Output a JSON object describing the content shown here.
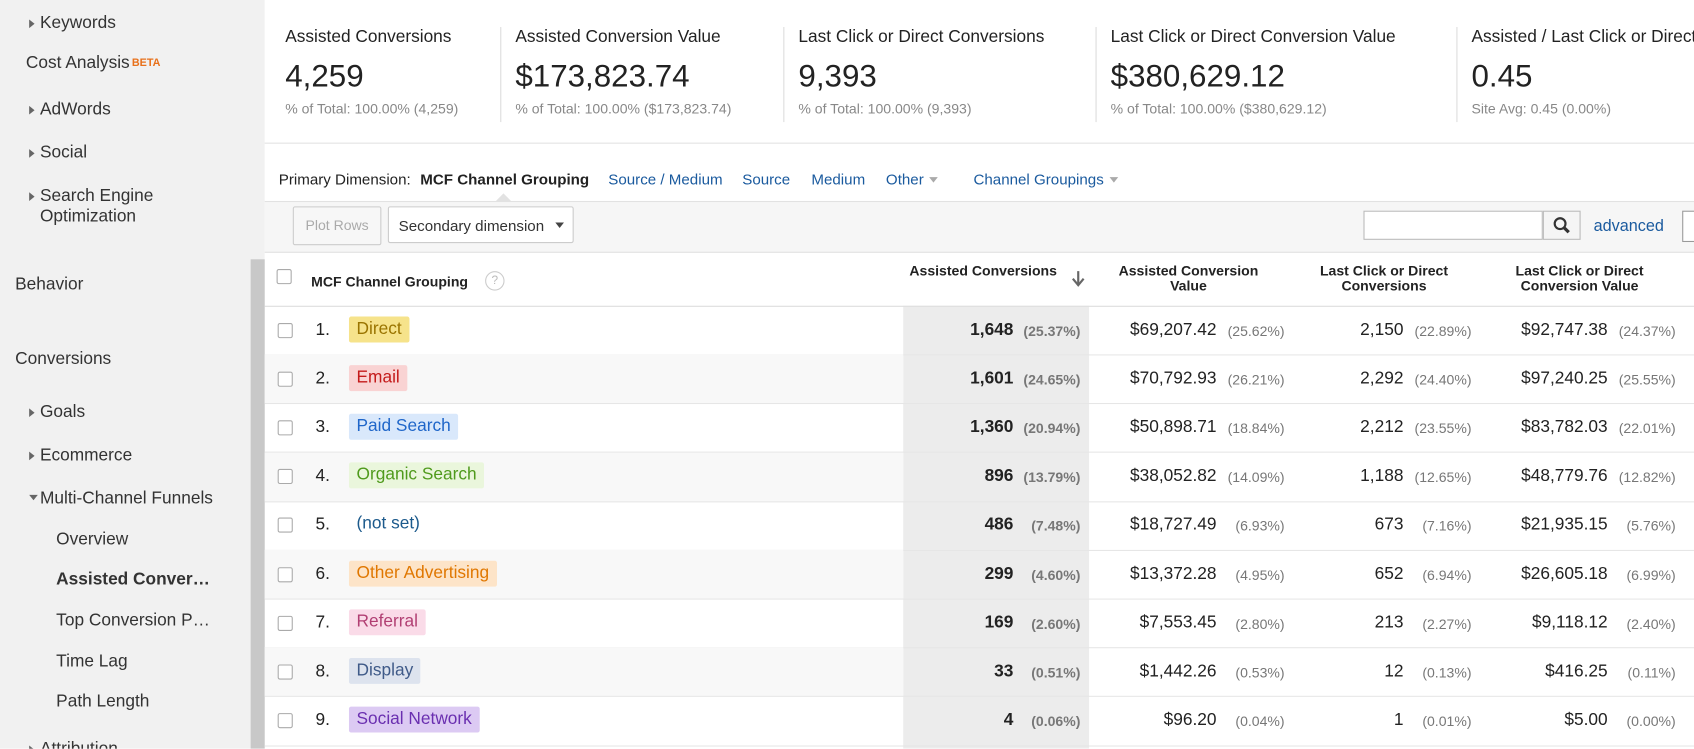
{
  "sidebar": {
    "items": [
      "Keywords",
      "Cost Analysis",
      "AdWords",
      "Social",
      "Search Engine Optimization",
      "Behavior",
      "Conversions",
      "Goals",
      "Ecommerce",
      "Multi-Channel Funnels",
      "Overview",
      "Assisted Conver…",
      "Top Conversion P…",
      "Time Lag",
      "Path Length",
      "Attribution"
    ],
    "badge": "BETA"
  },
  "summary": [
    {
      "label": "Assisted Conversions",
      "value": "4,259",
      "sub": "% of Total: 100.00% (4,259)"
    },
    {
      "label": "Assisted Conversion Value",
      "value": "$173,823.74",
      "sub": "% of Total: 100.00% ($173,823.74)"
    },
    {
      "label": "Last Click or Direct Conversions",
      "value": "9,393",
      "sub": "% of Total: 100.00% (9,393)"
    },
    {
      "label": "Last Click or Direct Conversion Value",
      "value": "$380,629.12",
      "sub": "% of Total: 100.00% ($380,629.12)"
    },
    {
      "label": "Assisted / Last Click or Direct Conversions",
      "value": "0.45",
      "sub": "Site Avg: 0.45 (0.00%)"
    }
  ],
  "dimension": {
    "label": "Primary Dimension:",
    "active": "MCF Channel Grouping",
    "links": [
      "Source / Medium",
      "Source",
      "Medium",
      "Other",
      "Channel Groupings"
    ]
  },
  "toolbar": {
    "plot_rows": "Plot Rows",
    "secondary": "Secondary dimension",
    "advanced": "advanced"
  },
  "table": {
    "headers": [
      "MCF Channel Grouping",
      "Assisted Conversions",
      "Assisted Conversion Value",
      "Last Click or Direct Conversions",
      "Last Click or Direct Conversion Value"
    ],
    "rows": [
      {
        "index": "1.",
        "channel": "Direct",
        "cells": [
          [
            "1,648",
            "(25.37%)"
          ],
          [
            "$69,207.42",
            "(25.62%)"
          ],
          [
            "2,150",
            "(22.89%)"
          ],
          [
            "$92,747.38",
            "(24.37%)"
          ]
        ]
      },
      {
        "index": "2.",
        "channel": "Email",
        "cells": [
          [
            "1,601",
            "(24.65%)"
          ],
          [
            "$70,792.93",
            "(26.21%)"
          ],
          [
            "2,292",
            "(24.40%)"
          ],
          [
            "$97,240.25",
            "(25.55%)"
          ]
        ]
      },
      {
        "index": "3.",
        "channel": "Paid Search",
        "cells": [
          [
            "1,360",
            "(20.94%)"
          ],
          [
            "$50,898.71",
            "(18.84%)"
          ],
          [
            "2,212",
            "(23.55%)"
          ],
          [
            "$83,782.03",
            "(22.01%)"
          ]
        ]
      },
      {
        "index": "4.",
        "channel": "Organic Search",
        "cells": [
          [
            "896",
            "(13.79%)"
          ],
          [
            "$38,052.82",
            "(14.09%)"
          ],
          [
            "1,188",
            "(12.65%)"
          ],
          [
            "$48,779.76",
            "(12.82%)"
          ]
        ]
      },
      {
        "index": "5.",
        "channel": "(not set)",
        "cells": [
          [
            "486",
            "(7.48%)"
          ],
          [
            "$18,727.49",
            "(6.93%)"
          ],
          [
            "673",
            "(7.16%)"
          ],
          [
            "$21,935.15",
            "(5.76%)"
          ]
        ]
      },
      {
        "index": "6.",
        "channel": "Other Advertising",
        "cells": [
          [
            "299",
            "(4.60%)"
          ],
          [
            "$13,372.28",
            "(4.95%)"
          ],
          [
            "652",
            "(6.94%)"
          ],
          [
            "$26,605.18",
            "(6.99%)"
          ]
        ]
      },
      {
        "index": "7.",
        "channel": "Referral",
        "cells": [
          [
            "169",
            "(2.60%)"
          ],
          [
            "$7,553.45",
            "(2.80%)"
          ],
          [
            "213",
            "(2.27%)"
          ],
          [
            "$9,118.12",
            "(2.40%)"
          ]
        ]
      },
      {
        "index": "8.",
        "channel": "Display",
        "cells": [
          [
            "33",
            "(0.51%)"
          ],
          [
            "$1,442.26",
            "(0.53%)"
          ],
          [
            "12",
            "(0.13%)"
          ],
          [
            "$416.25",
            "(0.11%)"
          ]
        ]
      },
      {
        "index": "9.",
        "channel": "Social Network",
        "cells": [
          [
            "4",
            "(0.06%)"
          ],
          [
            "$96.20",
            "(0.04%)"
          ],
          [
            "1",
            "(0.01%)"
          ],
          [
            "$5.00",
            "(0.00%)"
          ]
        ]
      }
    ]
  }
}
